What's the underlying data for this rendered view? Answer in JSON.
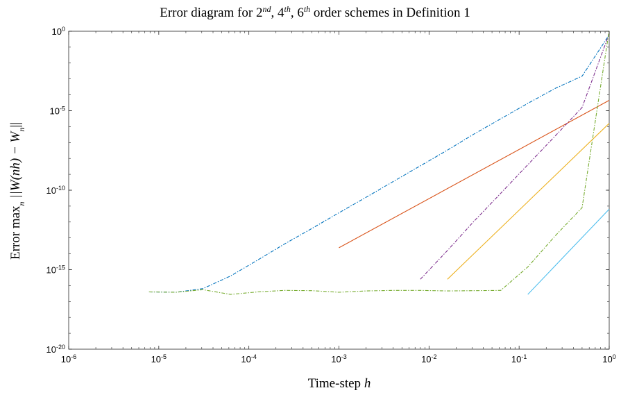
{
  "chart_data": {
    "type": "line",
    "title_parts": [
      "Error diagram for 2",
      "nd",
      ", 4",
      "th",
      ", 6",
      "th",
      " order schemes in Definition 1"
    ],
    "xlabel_parts": [
      "Time-step ",
      "h"
    ],
    "ylabel_parts": [
      "Error max",
      "n",
      " ||W(nh) − W",
      "n",
      "||"
    ],
    "xscale": "log",
    "yscale": "log",
    "xlim": [
      1e-06,
      1
    ],
    "ylim": [
      1e-20,
      1
    ],
    "x_ticks": [
      {
        "base": "10",
        "exp": "-6",
        "value": 1e-06
      },
      {
        "base": "10",
        "exp": "-5",
        "value": 1e-05
      },
      {
        "base": "10",
        "exp": "-4",
        "value": 0.0001
      },
      {
        "base": "10",
        "exp": "-3",
        "value": 0.001
      },
      {
        "base": "10",
        "exp": "-2",
        "value": 0.01
      },
      {
        "base": "10",
        "exp": "-1",
        "value": 0.1
      },
      {
        "base": "10",
        "exp": "0",
        "value": 1
      }
    ],
    "y_ticks": [
      {
        "base": "10",
        "exp": "-20",
        "value": 1e-20
      },
      {
        "base": "10",
        "exp": "-15",
        "value": 1e-15
      },
      {
        "base": "10",
        "exp": "-10",
        "value": 1e-10
      },
      {
        "base": "10",
        "exp": "-5",
        "value": 1e-05
      },
      {
        "base": "10",
        "exp": "0",
        "value": 1
      }
    ],
    "grid": false,
    "series": [
      {
        "color": "#0072BD",
        "style": "dashdot",
        "x": [
          7.8e-06,
          1.56e-05,
          3.1e-05,
          6.25e-05,
          0.000125,
          0.00025,
          0.0005,
          0.001,
          0.002,
          0.004,
          0.008,
          0.016,
          0.031,
          0.0625,
          0.125,
          0.25,
          0.5,
          1
        ],
        "y": [
          4e-17,
          3.8e-17,
          6.5e-17,
          4e-16,
          4e-15,
          4.2e-14,
          3.9e-13,
          3.8e-12,
          3.6e-11,
          3.5e-10,
          3.4e-09,
          3.3e-08,
          3.2e-07,
          3.1e-06,
          2.9e-05,
          0.00025,
          0.0015,
          0.6
        ]
      },
      {
        "color": "#D95319",
        "style": "solid",
        "x": [
          0.001,
          1
        ],
        "y": [
          2.4e-14,
          4.5e-05
        ]
      },
      {
        "color": "#7E2F8E",
        "style": "dashdot",
        "x": [
          0.008,
          0.016,
          0.031,
          0.0625,
          0.125,
          0.25,
          0.5,
          1
        ],
        "y": [
          2.5e-16,
          1.6e-14,
          1e-12,
          6.4e-11,
          4e-09,
          2.5e-07,
          1.6e-05,
          0.7
        ]
      },
      {
        "color": "#EDB120",
        "style": "solid",
        "x": [
          0.016,
          1
        ],
        "y": [
          2.5e-16,
          1.6e-06
        ]
      },
      {
        "color": "#77AC30",
        "style": "dashdot",
        "x": [
          7.8e-06,
          1.56e-05,
          3.1e-05,
          6.25e-05,
          0.000125,
          0.00025,
          0.0005,
          0.001,
          0.002,
          0.004,
          0.008,
          0.016,
          0.0625,
          0.125,
          0.25,
          0.5,
          1
        ],
        "y": [
          4e-17,
          3.8e-17,
          5.5e-17,
          2.8e-17,
          4e-17,
          5e-17,
          4.8e-17,
          3.8e-17,
          4.6e-17,
          5e-17,
          5e-17,
          4.6e-17,
          5e-17,
          1.5e-15,
          1.3e-13,
          8e-12,
          1.2
        ]
      },
      {
        "color": "#4DBEEE",
        "style": "solid",
        "x": [
          0.125,
          1
        ],
        "y": [
          2.8e-17,
          6.5e-12
        ]
      }
    ]
  }
}
